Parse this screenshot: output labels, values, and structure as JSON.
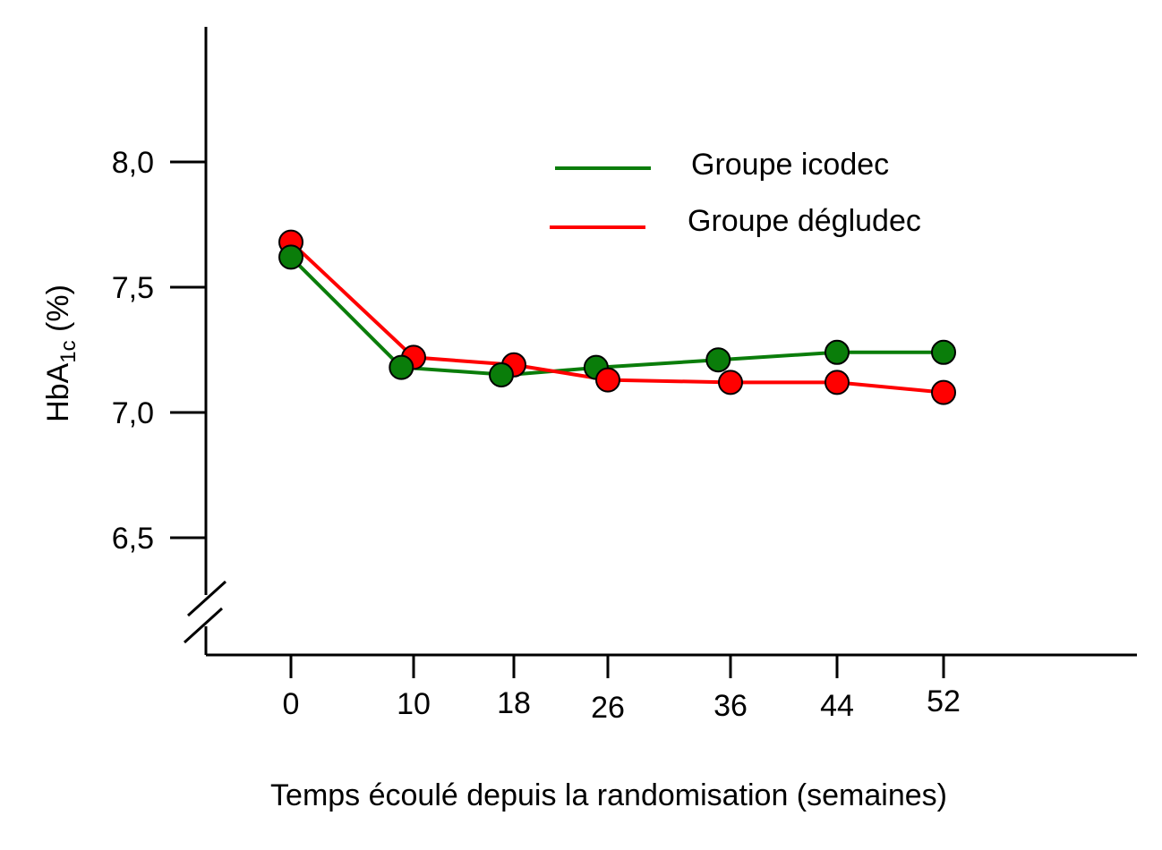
{
  "chart_data": {
    "type": "line",
    "title": "",
    "xlabel": "Temps écoulé depuis la randomisation (semaines)",
    "ylabel": {
      "main": "HbA",
      "subscript": "1c",
      "suffix": " (%)"
    },
    "y_ticks": [
      "6,5",
      "7,0",
      "7,5",
      "8,0"
    ],
    "y_tick_values": [
      6.5,
      7.0,
      7.5,
      8.0
    ],
    "x_ticks": [
      "0",
      "10",
      "18",
      "26",
      "36",
      "44",
      "52"
    ],
    "x_tick_positions": [
      0,
      10,
      18,
      26,
      36,
      44,
      52
    ],
    "ylim": [
      6.2,
      8.5
    ],
    "y_axis_break": true,
    "grid": false,
    "legend_placement": "top-right",
    "series": [
      {
        "name": "Groupe icodec",
        "color": "#0a7d0a",
        "x": [
          0,
          9,
          17,
          25,
          35,
          44,
          52
        ],
        "y": [
          7.62,
          7.18,
          7.15,
          7.18,
          7.21,
          7.24,
          7.24
        ]
      },
      {
        "name": "Groupe dégludec",
        "color": "#ff0000",
        "x": [
          0,
          10,
          18,
          26,
          36,
          44,
          52
        ],
        "y": [
          7.68,
          7.22,
          7.19,
          7.13,
          7.12,
          7.12,
          7.08
        ]
      }
    ]
  }
}
